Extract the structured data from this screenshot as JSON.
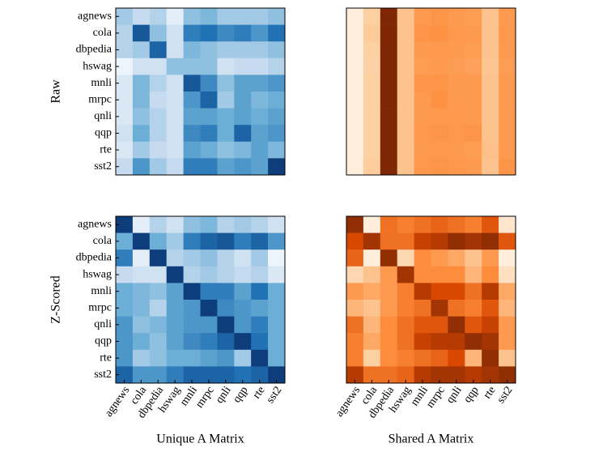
{
  "chart_data": [
    {
      "type": "heatmap",
      "ylabel": "Raw",
      "colormap": "Blues",
      "vlim": [
        0,
        1
      ],
      "y_categories": [
        "agnews",
        "cola",
        "dbpedia",
        "hswag",
        "mnli",
        "mrpc",
        "qnli",
        "qqp",
        "rte",
        "sst2"
      ],
      "values": [
        [
          0.35,
          0.25,
          0.3,
          0.1,
          0.4,
          0.45,
          0.35,
          0.35,
          0.35,
          0.4
        ],
        [
          0.3,
          0.85,
          0.4,
          0.2,
          0.7,
          0.75,
          0.65,
          0.7,
          0.6,
          0.75
        ],
        [
          0.3,
          0.35,
          0.8,
          0.2,
          0.45,
          0.4,
          0.35,
          0.35,
          0.35,
          0.4
        ],
        [
          0.05,
          0.2,
          0.2,
          0.4,
          0.4,
          0.4,
          0.2,
          0.25,
          0.25,
          0.3
        ],
        [
          0.15,
          0.45,
          0.3,
          0.2,
          0.85,
          0.65,
          0.4,
          0.55,
          0.55,
          0.6
        ],
        [
          0.15,
          0.45,
          0.25,
          0.2,
          0.6,
          0.8,
          0.35,
          0.55,
          0.45,
          0.5
        ],
        [
          0.15,
          0.4,
          0.3,
          0.2,
          0.55,
          0.55,
          0.5,
          0.55,
          0.5,
          0.55
        ],
        [
          0.2,
          0.5,
          0.3,
          0.2,
          0.65,
          0.7,
          0.5,
          0.8,
          0.55,
          0.6
        ],
        [
          0.15,
          0.35,
          0.25,
          0.2,
          0.55,
          0.5,
          0.4,
          0.45,
          0.55,
          0.45
        ],
        [
          0.25,
          0.6,
          0.35,
          0.25,
          0.7,
          0.7,
          0.55,
          0.6,
          0.55,
          0.95
        ]
      ]
    },
    {
      "type": "heatmap",
      "colormap": "Oranges",
      "vlim": [
        0,
        1
      ],
      "values": [
        [
          0.05,
          0.25,
          1.0,
          0.3,
          0.45,
          0.47,
          0.45,
          0.44,
          0.3,
          0.45
        ],
        [
          0.05,
          0.27,
          1.0,
          0.3,
          0.47,
          0.48,
          0.46,
          0.45,
          0.3,
          0.46
        ],
        [
          0.05,
          0.25,
          1.0,
          0.3,
          0.45,
          0.46,
          0.45,
          0.44,
          0.3,
          0.45
        ],
        [
          0.05,
          0.24,
          1.0,
          0.3,
          0.44,
          0.45,
          0.44,
          0.43,
          0.29,
          0.44
        ],
        [
          0.05,
          0.25,
          1.0,
          0.3,
          0.47,
          0.47,
          0.45,
          0.45,
          0.3,
          0.45
        ],
        [
          0.05,
          0.25,
          1.0,
          0.3,
          0.45,
          0.48,
          0.45,
          0.45,
          0.3,
          0.45
        ],
        [
          0.05,
          0.25,
          1.0,
          0.3,
          0.45,
          0.46,
          0.46,
          0.45,
          0.3,
          0.45
        ],
        [
          0.05,
          0.25,
          1.0,
          0.3,
          0.46,
          0.47,
          0.46,
          0.47,
          0.3,
          0.45
        ],
        [
          0.05,
          0.25,
          1.0,
          0.3,
          0.45,
          0.46,
          0.45,
          0.44,
          0.31,
          0.45
        ],
        [
          0.05,
          0.26,
          1.0,
          0.3,
          0.46,
          0.47,
          0.46,
          0.45,
          0.3,
          0.47
        ]
      ]
    },
    {
      "type": "heatmap",
      "ylabel": "Z-Scored",
      "xlabel": "Unique A Matrix",
      "colormap": "Blues",
      "vlim": [
        0,
        1
      ],
      "y_categories": [
        "agnews",
        "cola",
        "dbpedia",
        "hswag",
        "mnli",
        "mrpc",
        "qnli",
        "qqp",
        "rte",
        "sst2"
      ],
      "x_categories": [
        "agnews",
        "cola",
        "dbpedia",
        "hswag",
        "mnli",
        "mrpc",
        "qnli",
        "qqp",
        "rte",
        "sst2"
      ],
      "values": [
        [
          0.95,
          0.1,
          0.3,
          0.2,
          0.4,
          0.45,
          0.3,
          0.35,
          0.3,
          0.2
        ],
        [
          0.5,
          0.95,
          0.5,
          0.35,
          0.7,
          0.8,
          0.85,
          0.7,
          0.8,
          0.6
        ],
        [
          0.7,
          0.1,
          0.95,
          0.3,
          0.35,
          0.4,
          0.3,
          0.2,
          0.35,
          0.05
        ],
        [
          0.25,
          0.2,
          0.2,
          0.95,
          0.3,
          0.35,
          0.3,
          0.25,
          0.3,
          0.15
        ],
        [
          0.5,
          0.45,
          0.4,
          0.55,
          0.95,
          0.7,
          0.7,
          0.55,
          0.75,
          0.5
        ],
        [
          0.5,
          0.45,
          0.3,
          0.55,
          0.6,
          0.95,
          0.65,
          0.6,
          0.55,
          0.5
        ],
        [
          0.6,
          0.4,
          0.45,
          0.55,
          0.6,
          0.6,
          0.95,
          0.6,
          0.7,
          0.5
        ],
        [
          0.6,
          0.5,
          0.4,
          0.55,
          0.65,
          0.7,
          0.8,
          0.95,
          0.75,
          0.5
        ],
        [
          0.6,
          0.35,
          0.4,
          0.5,
          0.5,
          0.55,
          0.6,
          0.35,
          0.95,
          0.5
        ],
        [
          0.8,
          0.6,
          0.6,
          0.7,
          0.8,
          0.8,
          0.8,
          0.75,
          0.8,
          0.95
        ]
      ]
    },
    {
      "type": "heatmap",
      "xlabel": "Shared A Matrix",
      "colormap": "Oranges",
      "vlim": [
        0,
        1
      ],
      "x_categories": [
        "agnews",
        "cola",
        "dbpedia",
        "hswag",
        "mnli",
        "mrpc",
        "qnli",
        "qqp",
        "rte",
        "sst2"
      ],
      "values": [
        [
          0.95,
          0.05,
          0.6,
          0.55,
          0.6,
          0.65,
          0.6,
          0.55,
          0.7,
          0.1
        ],
        [
          0.75,
          0.9,
          0.6,
          0.6,
          0.8,
          0.85,
          0.95,
          0.9,
          0.95,
          0.7
        ],
        [
          0.65,
          0.05,
          0.95,
          0.2,
          0.5,
          0.45,
          0.4,
          0.3,
          0.45,
          0.05
        ],
        [
          0.2,
          0.3,
          0.45,
          0.9,
          0.5,
          0.5,
          0.5,
          0.35,
          0.5,
          0.15
        ],
        [
          0.45,
          0.4,
          0.45,
          0.55,
          0.85,
          0.75,
          0.75,
          0.6,
          0.85,
          0.4
        ],
        [
          0.35,
          0.3,
          0.45,
          0.55,
          0.6,
          0.9,
          0.6,
          0.55,
          0.7,
          0.35
        ],
        [
          0.6,
          0.35,
          0.5,
          0.6,
          0.7,
          0.7,
          0.95,
          0.7,
          0.8,
          0.45
        ],
        [
          0.55,
          0.4,
          0.5,
          0.6,
          0.8,
          0.85,
          0.85,
          0.95,
          0.9,
          0.45
        ],
        [
          0.55,
          0.25,
          0.5,
          0.55,
          0.6,
          0.65,
          0.75,
          0.35,
          0.95,
          0.3
        ],
        [
          0.85,
          0.6,
          0.6,
          0.65,
          0.85,
          0.9,
          0.9,
          0.85,
          0.9,
          0.95
        ]
      ]
    }
  ]
}
